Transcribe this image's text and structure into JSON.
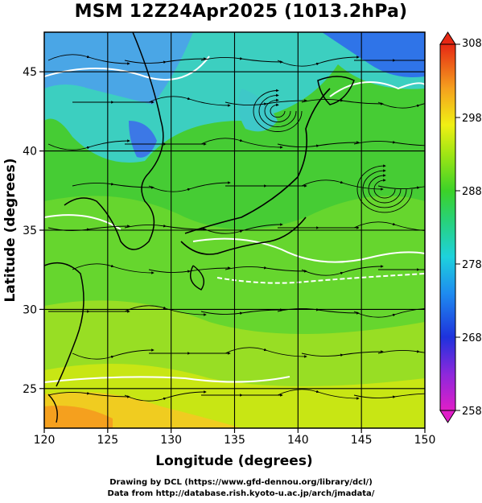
{
  "title": "MSM 12Z24Apr2025 (1013.2hPa)",
  "x_axis": {
    "label": "Longitude (degrees)",
    "range": [
      120,
      150
    ],
    "ticks": [
      "120",
      "125",
      "130",
      "135",
      "140",
      "145",
      "150"
    ]
  },
  "y_axis": {
    "label": "Latitude  (degrees)",
    "range": [
      22.5,
      47.5
    ],
    "ticks": [
      "25",
      "30",
      "35",
      "40",
      "45"
    ]
  },
  "colorbar": {
    "range": [
      258,
      308
    ],
    "ticks": [
      "308",
      "298",
      "288",
      "278",
      "268",
      "258"
    ]
  },
  "credits": {
    "line1": "Drawing by DCL (https://www.gfd-dennou.org/library/dcl/)",
    "line2": "Data from http://database.rish.kyoto-u.ac.jp/arch/jmadata/"
  },
  "map": {
    "field": "temperature (K) with wind streamlines",
    "gridlines": true,
    "colors": {
      "cold": "#1e64e6",
      "cool": "#3cc8dc",
      "mild": "#50d23c",
      "warm": "#c8e614",
      "hot": "#f5a01e"
    }
  }
}
